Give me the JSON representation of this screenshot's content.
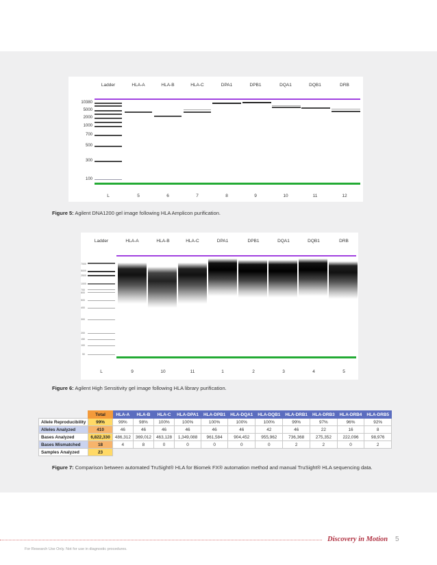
{
  "figure5": {
    "lane_headers": [
      "Ladder",
      "HLA-A",
      "HLA-B",
      "HLA-C",
      "DPA1",
      "DPB1",
      "DQA1",
      "DQB1",
      "DRB"
    ],
    "lane_footers": [
      "L",
      "5",
      "6",
      "7",
      "8",
      "9",
      "10",
      "11",
      "12"
    ],
    "size_labels": [
      "10380",
      "5000",
      "2000",
      "1000",
      "700",
      "500",
      "300",
      "100"
    ],
    "caption_label": "Figure 5:",
    "caption_text": " Agilent DNA1200 gel image following HLA Amplicon purification."
  },
  "figure6": {
    "lane_headers": [
      "Ladder",
      "HLA-A",
      "HLA-B",
      "HLA-C",
      "DPA1",
      "DPB1",
      "DQA1",
      "DQB1",
      "DRB"
    ],
    "lane_footers": [
      "L",
      "9",
      "10",
      "11",
      "1",
      "2",
      "3",
      "4",
      "5"
    ],
    "size_labels": [
      "7000",
      "5000",
      "2500",
      "1000",
      "700",
      "600",
      "500",
      "400",
      "300",
      "200",
      "150",
      "100",
      "50"
    ],
    "caption_label": "Figure 6:",
    "caption_text": " Agilent High Sensitivity gel image following HLA library purification."
  },
  "table": {
    "columns": [
      "Total",
      "HLA-A",
      "HLA-B",
      "HLA-C",
      "HLA-DPA1",
      "HLA-DPB1",
      "HLA-DQA1",
      "HLA-DQB1",
      "HLA-DRB1",
      "HLA-DRB3",
      "HLA-DRB4",
      "HLA-DRB5"
    ],
    "rows": [
      {
        "label": "Allele Reproducibility",
        "total": "99%",
        "values": [
          "99%",
          "98%",
          "100%",
          "100%",
          "100%",
          "100%",
          "100%",
          "99%",
          "97%",
          "96%",
          "92%"
        ]
      },
      {
        "label": "Alleles Analyzed",
        "total": "410",
        "values": [
          "46",
          "46",
          "46",
          "46",
          "46",
          "46",
          "42",
          "46",
          "22",
          "16",
          "8"
        ]
      },
      {
        "label": "Bases Analyzed",
        "total": "6,822,330",
        "values": [
          "486,312",
          "369,012",
          "463,128",
          "1,349,088",
          "961,584",
          "904,452",
          "955,962",
          "736,368",
          "275,352",
          "222,096",
          "98,976"
        ]
      },
      {
        "label": "Bases Mismatched",
        "total": "18",
        "values": [
          "4",
          "8",
          "0",
          "0",
          "0",
          "0",
          "0",
          "2",
          "2",
          "0",
          "2"
        ]
      },
      {
        "label": "Samples Analyzed",
        "total": "23",
        "values": []
      }
    ]
  },
  "figure7": {
    "caption_label": "Figure 7:",
    "caption_text": " Comparison between automated TruSight® HLA for Biomek FX® automation method and manual TruSight® HLA sequencing data."
  },
  "footer": {
    "brand": "Discovery in Motion",
    "page_number": "5",
    "disclaimer": "For Research Use Only. Not for use in diagnostic procedures."
  }
}
